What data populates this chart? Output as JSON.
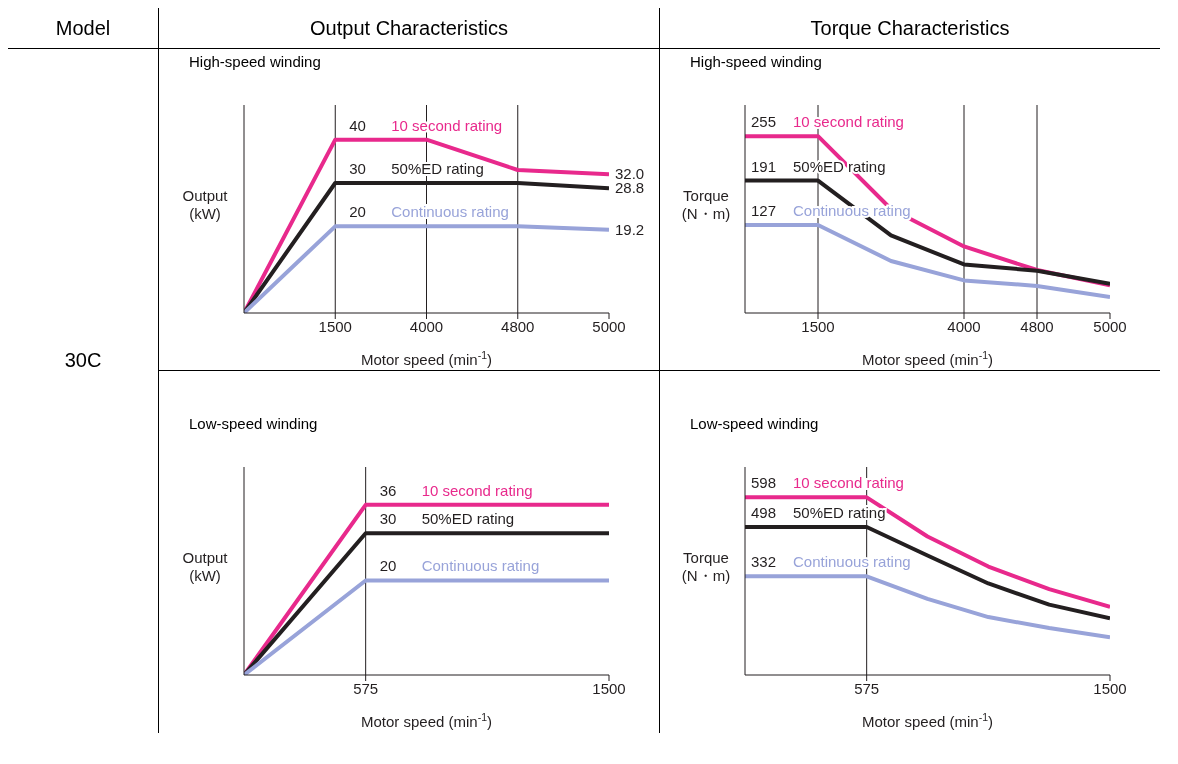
{
  "chart_data": [
    {
      "type": "line",
      "title": "High-speed winding",
      "subtitle": "Output Characteristics",
      "annotations": [
        "Model",
        "30C"
      ],
      "xlabel": "Motor speed (min$^{-1}$)",
      "ylabel": "Output (kW)",
      "categories": [
        null,
        "1500",
        "4000",
        "4800",
        "5000"
      ],
      "ylim": [
        0,
        48
      ],
      "tick_labels": "x",
      "ref_lines": [
        {
          "axis": "x",
          "value": "1500"
        },
        {
          "axis": "x",
          "value": "4000"
        },
        {
          "axis": "x",
          "value": "4800"
        }
      ],
      "series": [
        {
          "name": "10 second rating",
          "color": "#e8298c",
          "values": [
            0,
            40,
            40,
            33,
            32.0
          ],
          "value_labels": [
            null,
            "40",
            null,
            null,
            "32.0"
          ]
        },
        {
          "name": "50%ED rating",
          "color": "#231f20",
          "values": [
            0,
            30,
            30,
            30,
            28.8
          ],
          "value_labels": [
            null,
            "30",
            null,
            null,
            "28.8"
          ]
        },
        {
          "name": "Continuous rating",
          "color": "#98a3d9",
          "values": [
            0,
            20,
            20,
            20,
            19.2
          ],
          "value_labels": [
            null,
            "20",
            null,
            null,
            "19.2"
          ]
        }
      ]
    },
    {
      "type": "line",
      "title": "High-speed winding",
      "subtitle": "Torque Characteristics",
      "xlabel": "Motor speed (min$^{-1}$)",
      "ylabel": "Torque (N・m)",
      "categories": [
        null,
        "1500",
        null,
        "4000",
        "4800",
        "5000"
      ],
      "ylim": [
        0,
        300
      ],
      "tick_labels": "x",
      "ref_lines": [
        {
          "axis": "x",
          "value": "1500"
        },
        {
          "axis": "x",
          "value": "4000"
        },
        {
          "axis": "x",
          "value": "4800"
        }
      ],
      "series": [
        {
          "name": "10 second rating",
          "color": "#e8298c",
          "values": [
            255,
            255,
            150,
            96,
            62,
            40
          ],
          "value_labels": [
            "255",
            null,
            null,
            null,
            null,
            null
          ]
        },
        {
          "name": "50%ED rating",
          "color": "#231f20",
          "values": [
            191,
            191,
            112,
            70,
            61,
            42
          ],
          "value_labels": [
            "191",
            null,
            null,
            null,
            null,
            null
          ]
        },
        {
          "name": "Continuous rating",
          "color": "#98a3d9",
          "values": [
            127,
            127,
            75,
            47,
            39,
            23
          ],
          "value_labels": [
            "127",
            null,
            null,
            null,
            null,
            null
          ]
        }
      ]
    },
    {
      "type": "line",
      "title": "Low-speed winding",
      "xlabel": "Motor speed (min$^{-1}$)",
      "ylabel": "Output (kW)",
      "categories": [
        null,
        "575",
        null,
        "1500"
      ],
      "ylim": [
        0,
        44
      ],
      "tick_labels": "x",
      "ref_lines": [
        {
          "axis": "x",
          "value": "575"
        }
      ],
      "series": [
        {
          "name": "10 second rating",
          "color": "#e8298c",
          "values": [
            0,
            36,
            36,
            36
          ],
          "value_labels": [
            null,
            "36",
            null,
            null
          ]
        },
        {
          "name": "50%ED rating",
          "color": "#231f20",
          "values": [
            0,
            30,
            30,
            30
          ],
          "value_labels": [
            null,
            "30",
            null,
            null
          ]
        },
        {
          "name": "Continuous rating",
          "color": "#98a3d9",
          "values": [
            0,
            20,
            20,
            20
          ],
          "value_labels": [
            null,
            "20",
            null,
            null
          ]
        }
      ]
    },
    {
      "type": "line",
      "title": "Low-speed winding",
      "xlabel": "Motor speed (min$^{-1}$)",
      "ylabel": "Torque (N・m)",
      "categories": [
        null,
        null,
        "575",
        null,
        null,
        null,
        "1500"
      ],
      "ylim": [
        0,
        700
      ],
      "tick_labels": "x",
      "ref_lines": [
        {
          "axis": "x",
          "value": "575"
        }
      ],
      "series": [
        {
          "name": "10 second rating",
          "color": "#e8298c",
          "values": [
            598,
            598,
            598,
            466,
            365,
            289,
            229
          ],
          "value_labels": [
            "598",
            null,
            null,
            null,
            null,
            null,
            null
          ]
        },
        {
          "name": "50%ED rating",
          "color": "#231f20",
          "values": [
            498,
            498,
            498,
            402,
            308,
            237,
            191
          ],
          "value_labels": [
            "498",
            null,
            null,
            null,
            null,
            null,
            null
          ]
        },
        {
          "name": "Continuous rating",
          "color": "#98a3d9",
          "values": [
            332,
            332,
            332,
            256,
            195,
            158,
            127
          ],
          "value_labels": [
            "332",
            null,
            null,
            null,
            null,
            null,
            null
          ]
        }
      ]
    }
  ]
}
